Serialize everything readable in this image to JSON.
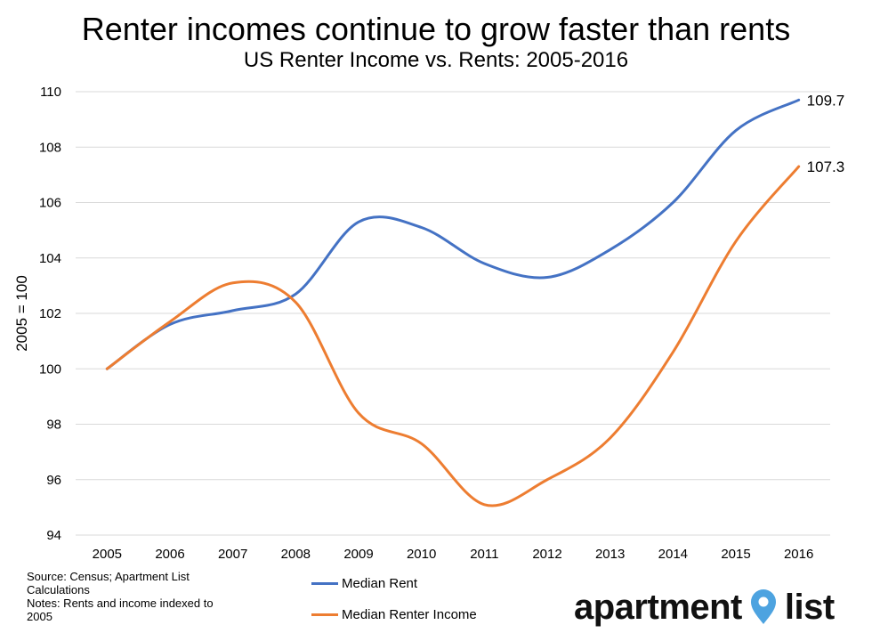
{
  "title": "Renter incomes continue to grow faster than rents",
  "subtitle": "US Renter Income vs. Rents: 2005-2016",
  "source": {
    "line1": "Source: Census; Apartment List Calculations",
    "line2": "Notes: Rents and income indexed to 2005"
  },
  "logo": {
    "part1": "apartment",
    "part2": "list",
    "pin_color": "#4da3e0"
  },
  "chart_data": {
    "type": "line",
    "ylabel": "2005 = 100",
    "xlabel": "",
    "categories": [
      "2005",
      "2006",
      "2007",
      "2008",
      "2009",
      "2010",
      "2011",
      "2012",
      "2013",
      "2014",
      "2015",
      "2016"
    ],
    "ylim": [
      94,
      110
    ],
    "yticks": [
      94,
      96,
      98,
      100,
      102,
      104,
      106,
      108,
      110
    ],
    "grid": true,
    "legend_position": "bottom",
    "series": [
      {
        "name": "Median Rent",
        "color": "#4472c4",
        "values": [
          100,
          101.6,
          102.1,
          102.7,
          105.3,
          105.1,
          103.8,
          103.3,
          104.3,
          106.0,
          108.6,
          109.7
        ],
        "end_label": "109.7"
      },
      {
        "name": "Median Renter Income",
        "color": "#ed7d31",
        "values": [
          100,
          101.7,
          103.1,
          102.4,
          98.4,
          97.3,
          95.1,
          96.0,
          97.5,
          100.6,
          104.6,
          107.3
        ],
        "end_label": "107.3"
      }
    ]
  }
}
